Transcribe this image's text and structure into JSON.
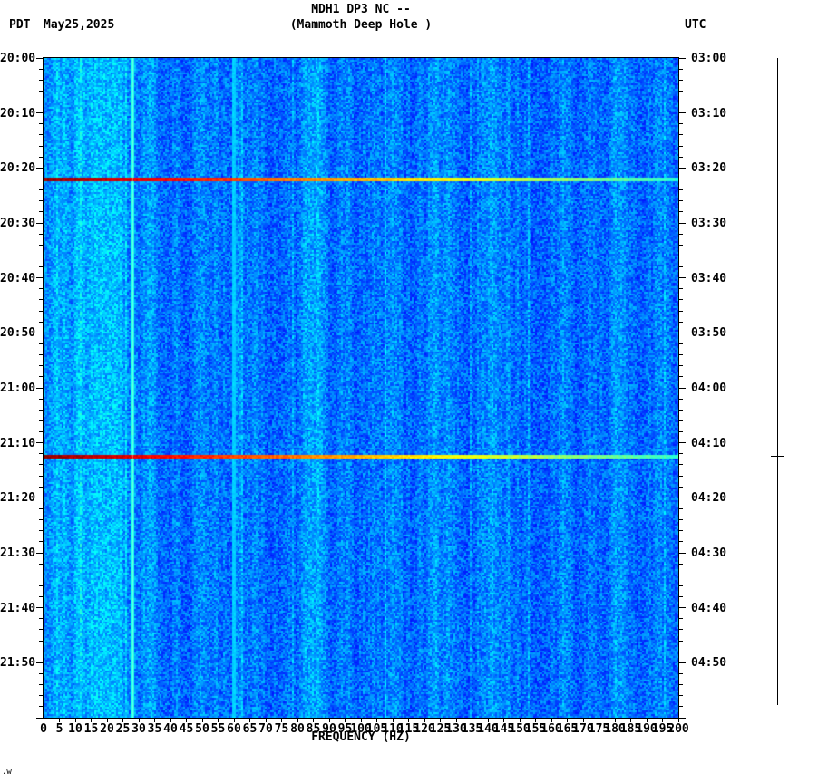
{
  "header": {
    "tz_left": "PDT",
    "date": "May25,2025",
    "title": "MDH1 DP3 NC --",
    "subtitle": "(Mammoth Deep Hole )",
    "tz_right": "UTC"
  },
  "footer_mark": ".w",
  "chart_data": {
    "type": "heatmap",
    "title": "MDH1 DP3 NC -- (Mammoth Deep Hole )",
    "xlabel": "FREQUENCY (HZ)",
    "x_min": 0,
    "x_max": 200,
    "x_tick_step": 5,
    "duration_min": 120,
    "y_label_interval_min": 10,
    "y_minor_tick_min": 2,
    "y_axis_left": {
      "timezone": "PDT",
      "labels": [
        "20:00",
        "20:10",
        "20:20",
        "20:30",
        "20:40",
        "20:50",
        "21:00",
        "21:10",
        "21:20",
        "21:30",
        "21:40",
        "21:50"
      ]
    },
    "y_axis_right": {
      "timezone": "UTC",
      "labels": [
        "03:00",
        "03:10",
        "03:20",
        "03:30",
        "03:40",
        "03:50",
        "04:00",
        "04:10",
        "04:20",
        "04:30",
        "04:40",
        "04:50"
      ]
    },
    "events": [
      {
        "pdt": "20:22",
        "utc": "03:22",
        "minutes_from_start": 22.0
      },
      {
        "pdt": "21:12",
        "utc": "04:12",
        "minutes_from_start": 72.5
      }
    ],
    "vertical_lines_hz": [
      {
        "freq": 28,
        "level": 0.4
      },
      {
        "freq": 60,
        "level": 0.33
      }
    ],
    "colormap": "jet",
    "background_level": {
      "base": 0.27,
      "jitter": 0.14
    },
    "palette_sample": {
      "background_blue": "#0f8cff",
      "event_low_freq": "#8b0000",
      "event_mid_freq": "#ffd700",
      "event_high_freq": "#40e0d0"
    }
  }
}
